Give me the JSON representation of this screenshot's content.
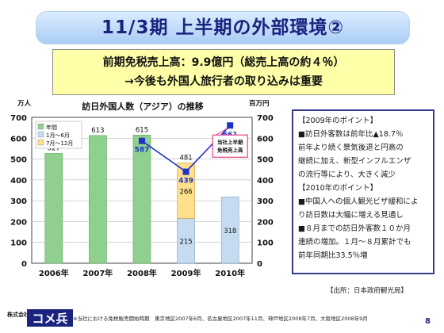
{
  "title": "11/3期 上半期の外部環境②",
  "summary": {
    "line1": "前期免税売上高：9.9億円（総売上高の約４％）",
    "line2": "→今後も外国人旅行者の取り込みは重要"
  },
  "chart_data": {
    "type": "bar",
    "title": "訪日外国人数（アジア）の推移",
    "left_unit": "万人",
    "right_unit": "百万円",
    "categories": [
      "2006年",
      "2007年",
      "2008年",
      "2009年",
      "2010年"
    ],
    "ylim": [
      0,
      700
    ],
    "yticks": [
      "0",
      "100",
      "200",
      "300",
      "400",
      "500",
      "600",
      "700"
    ],
    "y2lim": [
      0,
      700
    ],
    "y2ticks": [
      "0",
      "100",
      "200",
      "300",
      "400",
      "500",
      "600",
      "700"
    ],
    "legend": {
      "annual": "年間",
      "h1": "1月～6月",
      "h2": "7月～12月",
      "placement": "top-left"
    },
    "annual_values": [
      527,
      613,
      615,
      null,
      null
    ],
    "annual_labels": [
      "527",
      "613",
      "615",
      "",
      ""
    ],
    "h1_values": [
      null,
      null,
      null,
      215,
      318
    ],
    "h1_labels": [
      "",
      "",
      "",
      "215",
      "318"
    ],
    "h2_values": [
      null,
      null,
      null,
      266,
      null
    ],
    "h2_labels": [
      "",
      "",
      "",
      "266",
      ""
    ],
    "stack_totals": [
      null,
      null,
      null,
      481,
      null
    ],
    "stack_total_labels": [
      "",
      "",
      "",
      "481",
      ""
    ],
    "sales_series": {
      "x": [
        "2008年",
        "2009年",
        "2010年"
      ],
      "values": [
        587,
        439,
        661
      ],
      "labels": [
        "587",
        "439",
        "661"
      ],
      "axis": "right"
    },
    "annotation": "当社上半期免税売上高",
    "colors": {
      "annual": "#8fd08f",
      "h1": "#c6dbf0",
      "h2": "#fde08b",
      "sales": "#1f33c9",
      "annotation": "#e8408a"
    }
  },
  "points": {
    "head_2009": "【2009年のポイント】",
    "items_2009": [
      "■訪日外客数は前年比▲18.7％",
      "前年より続く景気後退と円高の",
      "継続に加え、新型インフルエンザ",
      "の流行等により、大きく減少"
    ],
    "head_2010": "【2010年のポイント】",
    "items_2010": [
      "■中国人への個人観光ビザ緩和によ",
      "り訪日数は大幅に増える見通し",
      "■８月までの訪日外客数１０か月",
      "連続の増加。１月～８月累計でも",
      "前年同期比33.5％増"
    ]
  },
  "source": "【出所：日本政府観光局】",
  "footer": {
    "logo_small": "株式会社",
    "logo_main": "コメ兵",
    "note": "※当社における免税販売開始時期　東京地区2007年6月、名古屋地区2007年11月、神戸地区2008年7月、大阪地区2008年9月"
  },
  "page_number": "8"
}
